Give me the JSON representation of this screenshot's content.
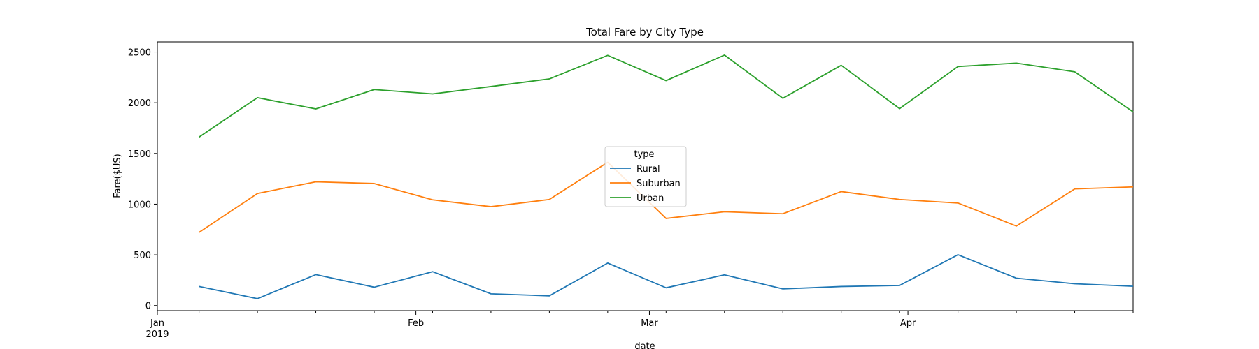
{
  "chart_data": {
    "type": "line",
    "title": "Total Fare by City Type",
    "xlabel": "date",
    "ylabel": "Fare($US)",
    "ylim": [
      -50,
      2600
    ],
    "yticks": [
      0,
      500,
      1000,
      1500,
      2000,
      2500
    ],
    "x": [
      "2019-01-06",
      "2019-01-13",
      "2019-01-20",
      "2019-01-27",
      "2019-02-03",
      "2019-02-10",
      "2019-02-17",
      "2019-02-24",
      "2019-03-03",
      "2019-03-10",
      "2019-03-17",
      "2019-03-24",
      "2019-03-31",
      "2019-04-07",
      "2019-04-14",
      "2019-04-21",
      "2019-04-28"
    ],
    "xticks_major": [
      {
        "date": "2019-01-01",
        "label": "Jan",
        "sublabel": "2019"
      },
      {
        "date": "2019-02-01",
        "label": "Feb",
        "sublabel": ""
      },
      {
        "date": "2019-03-01",
        "label": "Mar",
        "sublabel": ""
      },
      {
        "date": "2019-04-01",
        "label": "Apr",
        "sublabel": ""
      }
    ],
    "legend": {
      "title": "type",
      "position": "center"
    },
    "grid": false,
    "series": [
      {
        "name": "Rural",
        "color": "#1f77b4",
        "values": [
          188,
          68,
          305,
          181,
          334,
          116,
          96,
          419,
          175,
          303,
          164,
          188,
          198,
          501,
          270,
          215,
          190
        ]
      },
      {
        "name": "Suburban",
        "color": "#ff7f0e",
        "values": [
          722,
          1105,
          1220,
          1203,
          1043,
          975,
          1046,
          1413,
          859,
          925,
          905,
          1124,
          1046,
          1011,
          784,
          1150,
          1170
        ]
      },
      {
        "name": "Urban",
        "color": "#2ca02c",
        "values": [
          1661,
          2050,
          1939,
          2130,
          2087,
          2160,
          2235,
          2467,
          2218,
          2470,
          2044,
          2369,
          1942,
          2357,
          2391,
          2305,
          1910
        ]
      }
    ]
  }
}
